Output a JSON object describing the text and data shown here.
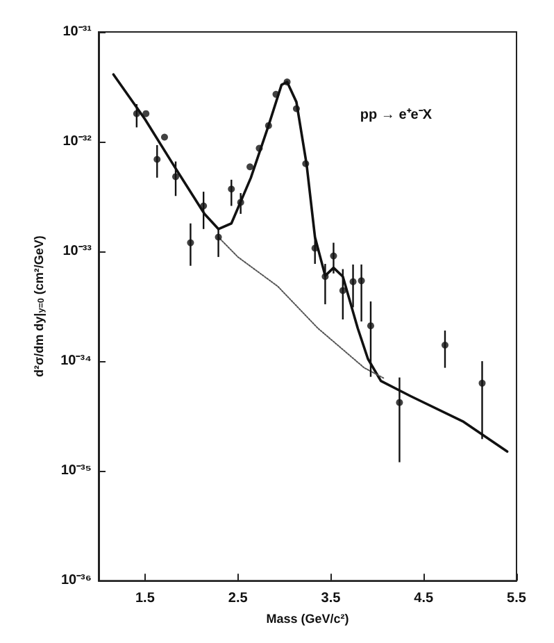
{
  "chart_data": {
    "type": "scatter",
    "xlabel": "Mass (GeV/c²)",
    "ylabel": "d²σ/dm dy|$_{y=0}$ (cm²/GeV)",
    "annotations": [
      "pp → e⁺e⁻X"
    ],
    "log": "y",
    "grid": false,
    "xlim": [
      1.0,
      5.5
    ],
    "xticks": [
      1.5,
      2.5,
      3.5,
      4.5,
      5.5
    ],
    "ylim": [
      1e-36,
      1e-31
    ],
    "yticks": [
      {
        "value": 1e-36,
        "label": "10⁻³⁶"
      },
      {
        "value": 1e-35,
        "label": "10⁻³⁵"
      },
      {
        "value": 1e-34,
        "label": "10⁻³⁴"
      },
      {
        "value": 1e-33,
        "label": "10⁻³³"
      },
      {
        "value": 1e-32,
        "label": "10⁻³²"
      },
      {
        "value": 1e-31,
        "label": "10⁻³¹"
      }
    ],
    "series": [
      {
        "type": "scatter",
        "color": "#111111",
        "marker": "circle",
        "x": [
          1.41,
          1.51,
          1.63,
          1.71,
          1.83,
          1.99,
          2.13,
          2.29,
          2.43,
          2.53,
          2.63,
          2.73,
          2.83,
          2.91,
          3.03,
          3.13,
          3.23,
          3.33,
          3.44,
          3.53,
          3.63,
          3.74,
          3.83,
          3.93,
          4.24,
          4.73,
          5.13
        ],
        "values": [
          1.8e-32,
          1.8e-32,
          6.9e-33,
          1.1e-32,
          4.8e-33,
          1.2e-33,
          2.6e-33,
          1.35e-33,
          3.7e-33,
          2.8e-33,
          5.9e-33,
          8.7e-33,
          1.4e-32,
          2.7e-32,
          3.5e-32,
          2e-32,
          6.3e-33,
          1.07e-33,
          5.9e-34,
          9.1e-34,
          4.4e-34,
          5.3e-34,
          5.4e-34,
          2.1e-34,
          4.2e-35,
          1.4e-34,
          6.3e-35
        ],
        "errors": [
          [
            1.35e-32,
            2.2e-32
          ],
          null,
          [
            4.7e-33,
            9.3e-33
          ],
          null,
          [
            3.2e-33,
            6.6e-33
          ],
          [
            7.4e-34,
            1.8e-33
          ],
          [
            1.6e-33,
            3.5e-33
          ],
          [
            8.9e-34,
            1.6e-33
          ],
          [
            2.6e-33,
            4.5e-33
          ],
          [
            2.2e-33,
            3.4e-33
          ],
          null,
          null,
          null,
          null,
          null,
          null,
          null,
          [
            7.7e-34,
            1.4e-33
          ],
          [
            3.3e-34,
            7.7e-34
          ],
          [
            6.3e-34,
            1.2e-33
          ],
          [
            2.4e-34,
            6.9e-34
          ],
          [
            3.1e-34,
            7.6e-34
          ],
          [
            2.3e-34,
            7.6e-34
          ],
          [
            7.2e-35,
            3.5e-34
          ],
          [
            1.2e-35,
            7.1e-35
          ],
          [
            8.7e-35,
            1.9e-34
          ],
          [
            1.95e-35,
            1e-34
          ]
        ]
      },
      {
        "type": "line",
        "color": "#111111",
        "line_style": "solid",
        "marker": "none",
        "x": [
          1.16,
          1.5,
          1.83,
          2.14,
          2.29,
          2.43,
          2.64,
          2.83,
          2.97,
          3.03,
          3.13,
          3.24,
          3.33,
          3.44,
          3.53,
          3.63,
          3.79,
          3.9,
          4.04,
          4.36,
          4.93,
          5.4
        ],
        "values": [
          4.1e-32,
          1.6e-32,
          5.7e-33,
          2.2e-33,
          1.6e-33,
          1.8e-33,
          4.7e-33,
          1.4e-32,
          3.3e-32,
          3.5e-32,
          2.3e-32,
          6.2e-33,
          1.35e-33,
          6e-34,
          7.1e-34,
          5.9e-34,
          2e-34,
          1.05e-34,
          6.6e-35,
          4.8e-35,
          2.8e-35,
          1.5e-35
        ]
      },
      {
        "type": "line",
        "color": "#555555",
        "line_style": "dotted",
        "marker": "none",
        "x": [
          2.29,
          2.5,
          2.93,
          3.36,
          3.86,
          4.07
        ],
        "values": [
          1.35e-33,
          8.9e-34,
          4.8e-34,
          2e-34,
          8.7e-35,
          7e-35
        ]
      }
    ]
  }
}
